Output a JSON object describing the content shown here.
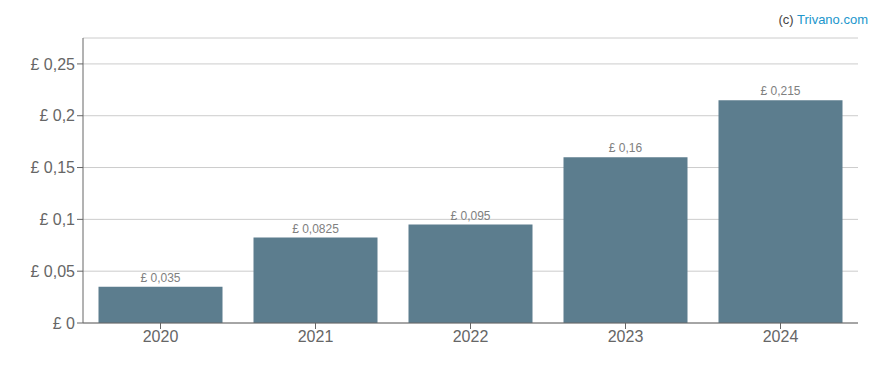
{
  "chart_data": {
    "type": "bar",
    "categories": [
      "2020",
      "2021",
      "2022",
      "2023",
      "2024"
    ],
    "values": [
      0.035,
      0.0825,
      0.095,
      0.16,
      0.215
    ],
    "value_labels": [
      "£ 0,035",
      "£ 0,0825",
      "£ 0,095",
      "£ 0,16",
      "£ 0,215"
    ],
    "data_labels": true,
    "color": "#5c7d8e",
    "ylim": [
      0,
      0.275
    ],
    "yticks": [
      {
        "value": 0,
        "label": "£ 0"
      },
      {
        "value": 0.05,
        "label": "£ 0,05"
      },
      {
        "value": 0.1,
        "label": "£ 0,1"
      },
      {
        "value": 0.15,
        "label": "£ 0,15"
      },
      {
        "value": 0.2,
        "label": "£ 0,2"
      },
      {
        "value": 0.25,
        "label": "£ 0,25"
      }
    ],
    "grid": true,
    "annotations": [
      {
        "text": "(c) ",
        "color": "#444444"
      },
      {
        "text": "Trivano.com",
        "color": "#2196cc"
      }
    ]
  }
}
